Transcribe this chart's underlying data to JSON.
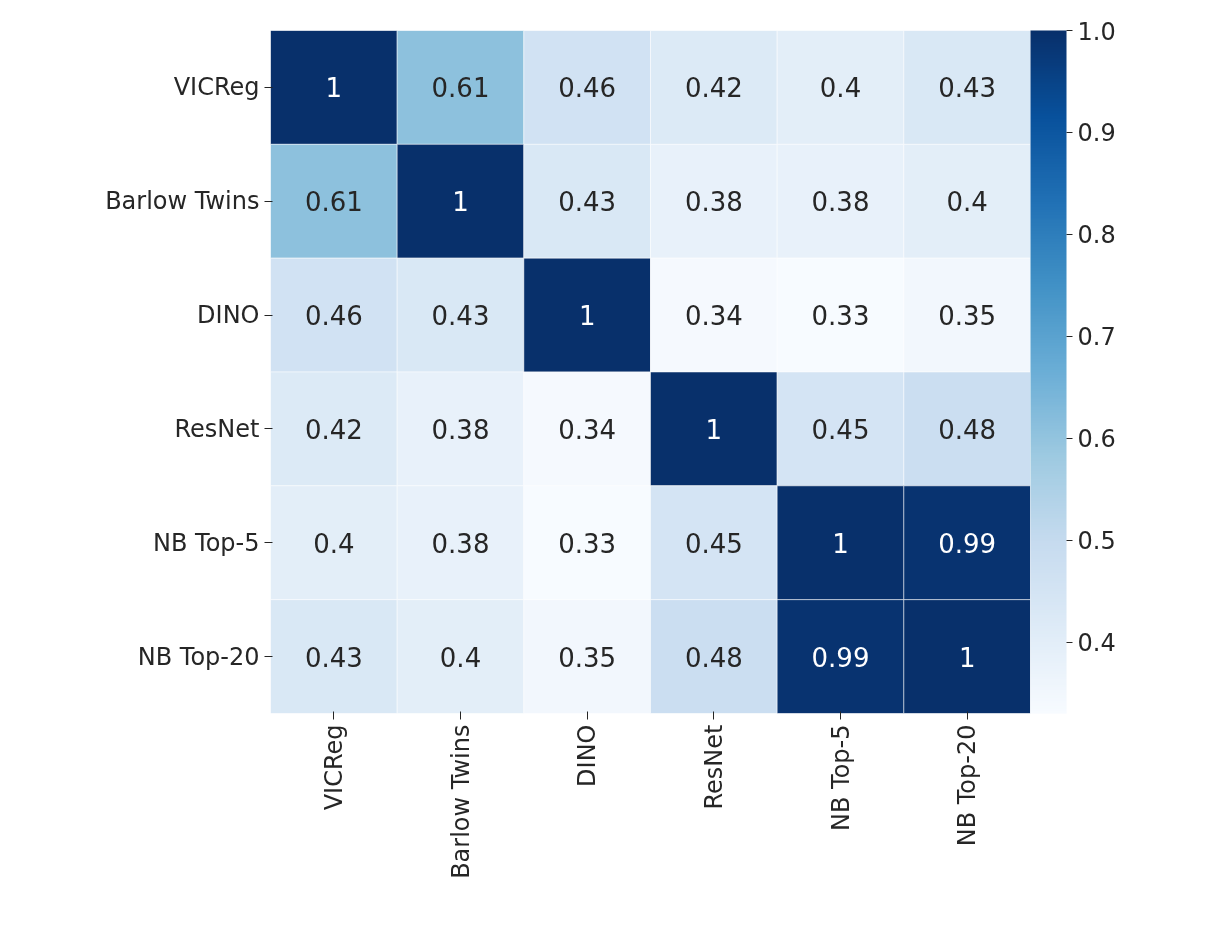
{
  "chart_data": {
    "type": "heatmap",
    "categories": [
      "VICReg",
      "Barlow Twins",
      "DINO",
      "ResNet",
      "NB Top-5",
      "NB Top-20"
    ],
    "y_categories": [
      "VICReg",
      "Barlow Twins",
      "DINO",
      "ResNet",
      "NB Top-5",
      "NB Top-20"
    ],
    "cells": [
      [
        1,
        0.61,
        0.46,
        0.42,
        0.4,
        0.43
      ],
      [
        0.61,
        1,
        0.43,
        0.38,
        0.38,
        0.4
      ],
      [
        0.46,
        0.43,
        1,
        0.34,
        0.33,
        0.35
      ],
      [
        0.42,
        0.38,
        0.34,
        1,
        0.45,
        0.48
      ],
      [
        0.4,
        0.38,
        0.33,
        0.45,
        1,
        0.99
      ],
      [
        0.43,
        0.4,
        0.35,
        0.48,
        0.99,
        1
      ]
    ],
    "data_labels": true,
    "clim": [
      0.33,
      1.0
    ],
    "cticks": [
      0.4,
      0.5,
      0.6,
      0.7,
      0.8,
      0.9,
      {
        "value": 1.0,
        "label": "1.0"
      }
    ]
  }
}
